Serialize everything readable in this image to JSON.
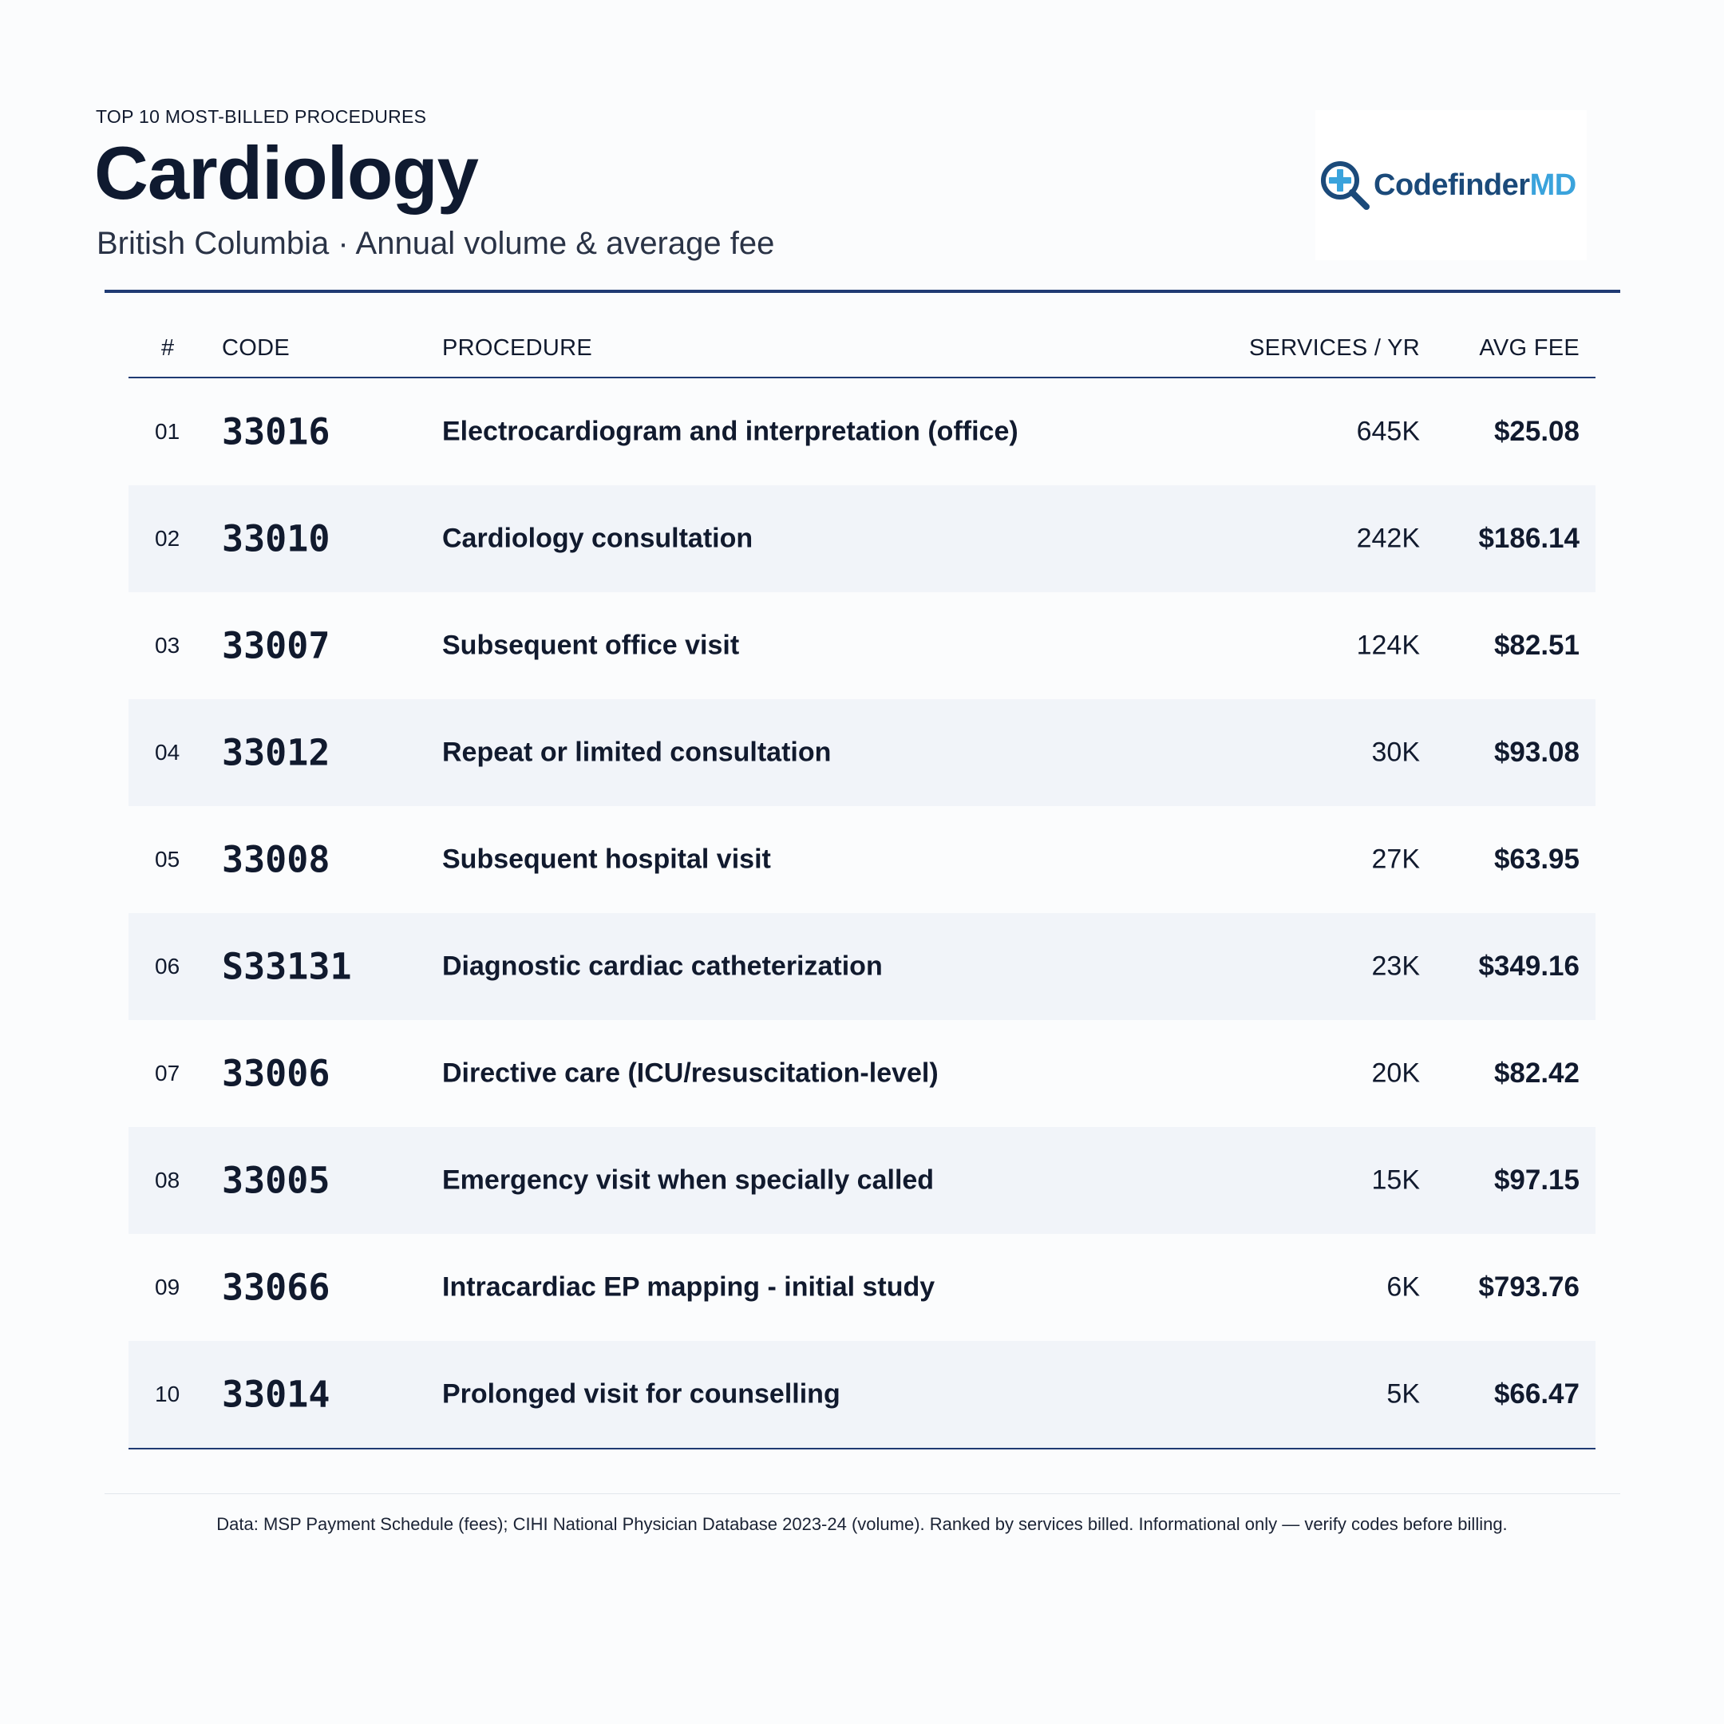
{
  "header": {
    "eyebrow": "TOP 10 MOST-BILLED PROCEDURES",
    "title": "Cardiology",
    "subtitle": "British Columbia · Annual volume & average fee"
  },
  "logo": {
    "text_primary": "Codefinder",
    "text_accent": "MD",
    "icon": "magnifier-plus-icon",
    "colors": {
      "primary": "#1b4a7a",
      "accent": "#3aa3dc"
    }
  },
  "table": {
    "columns": [
      "#",
      "CODE",
      "PROCEDURE",
      "SERVICES / YR",
      "AVG FEE"
    ],
    "rows": [
      {
        "rank": "01",
        "code": "33016",
        "procedure": "Electrocardiogram and interpretation (office)",
        "services": "645K",
        "fee": "$25.08"
      },
      {
        "rank": "02",
        "code": "33010",
        "procedure": "Cardiology consultation",
        "services": "242K",
        "fee": "$186.14"
      },
      {
        "rank": "03",
        "code": "33007",
        "procedure": "Subsequent office visit",
        "services": "124K",
        "fee": "$82.51"
      },
      {
        "rank": "04",
        "code": "33012",
        "procedure": "Repeat or limited consultation",
        "services": "30K",
        "fee": "$93.08"
      },
      {
        "rank": "05",
        "code": "33008",
        "procedure": "Subsequent hospital visit",
        "services": "27K",
        "fee": "$63.95"
      },
      {
        "rank": "06",
        "code": "S33131",
        "procedure": "Diagnostic cardiac catheterization",
        "services": "23K",
        "fee": "$349.16"
      },
      {
        "rank": "07",
        "code": "33006",
        "procedure": "Directive care (ICU/resuscitation-level)",
        "services": "20K",
        "fee": "$82.42"
      },
      {
        "rank": "08",
        "code": "33005",
        "procedure": "Emergency visit when specially called",
        "services": "15K",
        "fee": "$97.15"
      },
      {
        "rank": "09",
        "code": "33066",
        "procedure": "Intracardiac EP mapping - initial study",
        "services": "6K",
        "fee": "$793.76"
      },
      {
        "rank": "10",
        "code": "33014",
        "procedure": "Prolonged visit for counselling",
        "services": "5K",
        "fee": "$66.47"
      }
    ]
  },
  "footnote": "Data: MSP Payment Schedule (fees); CIHI National Physician Database 2023-24 (volume). Ranked by services billed. Informational only — verify codes before billing.",
  "colors": {
    "accent_rule": "#1f3a73",
    "row_alt": "#f1f4f9",
    "text": "#111a2e"
  }
}
